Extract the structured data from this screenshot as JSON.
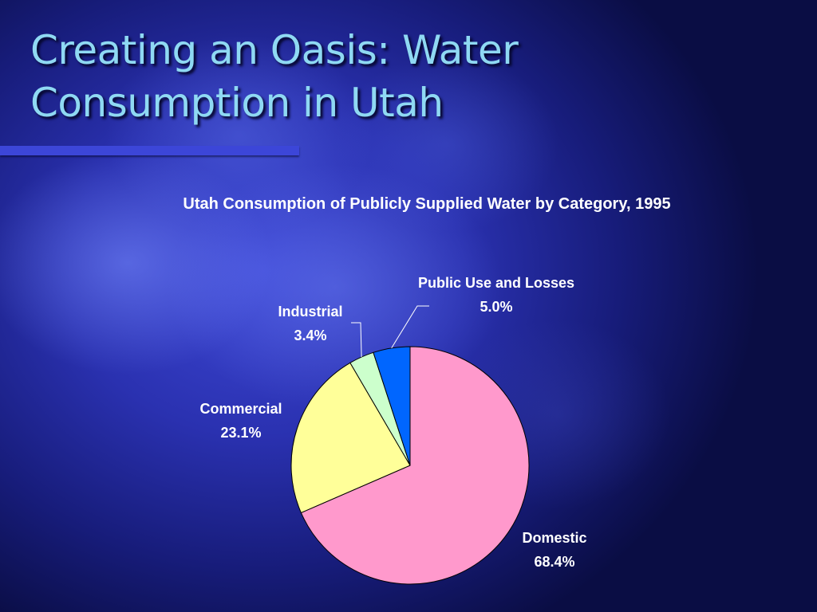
{
  "slide": {
    "title_line1": "Creating an Oasis: Water",
    "title_line2": "Consumption in Utah"
  },
  "chart_data": {
    "type": "pie",
    "title": "Utah Consumption of Publicly Supplied Water by Category, 1995",
    "categories": [
      "Domestic",
      "Commercial",
      "Industrial",
      "Public Use and Losses"
    ],
    "values": [
      68.4,
      23.1,
      3.4,
      5.0
    ],
    "value_labels": [
      "68.4%",
      "23.1%",
      "3.4%",
      "5.0%"
    ],
    "colors": [
      "#ff99cc",
      "#ffff99",
      "#ccffcc",
      "#0066ff"
    ],
    "start": "12 o'clock",
    "direction": "clockwise",
    "legend": "none (data labels beside slices)"
  }
}
